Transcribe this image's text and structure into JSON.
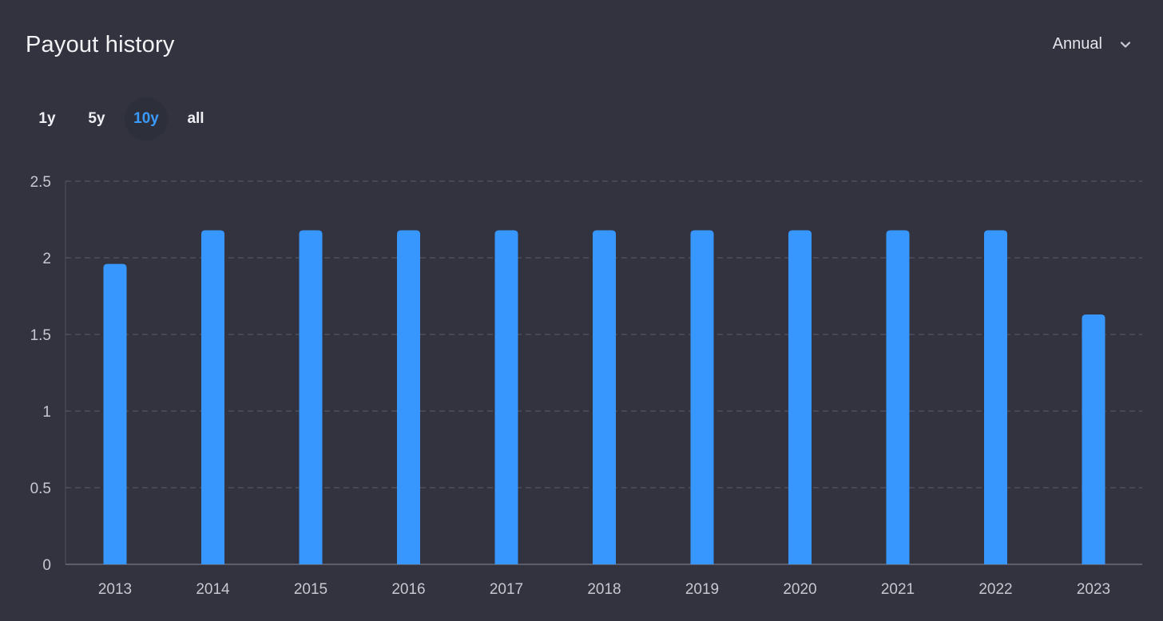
{
  "header": {
    "title": "Payout history",
    "period": "Annual"
  },
  "ranges": [
    {
      "label": "1y",
      "active": false
    },
    {
      "label": "5y",
      "active": false
    },
    {
      "label": "10y",
      "active": true
    },
    {
      "label": "all",
      "active": false
    }
  ],
  "colors": {
    "background": "#32333f",
    "bar": "#3797ff",
    "active_range": "#3a9bff",
    "grid": "#5a5c6b"
  },
  "chart_data": {
    "type": "bar",
    "title": "",
    "xlabel": "",
    "ylabel": "",
    "categories": [
      "2013",
      "2014",
      "2015",
      "2016",
      "2017",
      "2018",
      "2019",
      "2020",
      "2021",
      "2022",
      "2023"
    ],
    "values": [
      1.96,
      2.18,
      2.18,
      2.18,
      2.18,
      2.18,
      2.18,
      2.18,
      2.18,
      2.18,
      1.63
    ],
    "ylim": [
      0,
      2.5
    ],
    "yticks": [
      "0",
      "0.5",
      "1",
      "1.5",
      "2",
      "2.5"
    ],
    "grid": true,
    "legend": "none"
  }
}
